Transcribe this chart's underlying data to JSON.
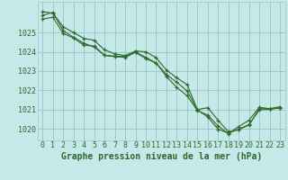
{
  "background_color": "#c5e8e8",
  "grid_color": "#a0c8c8",
  "line_color": "#2d6a2d",
  "marker_color": "#2d6a2d",
  "xlabel": "Graphe pression niveau de la mer (hPa)",
  "xlabel_fontsize": 7,
  "tick_fontsize": 6,
  "ylim": [
    1019.4,
    1026.6
  ],
  "yticks": [
    1020,
    1021,
    1022,
    1023,
    1024,
    1025
  ],
  "xlim": [
    -0.5,
    23.5
  ],
  "xticks": [
    0,
    1,
    2,
    3,
    4,
    5,
    6,
    7,
    8,
    9,
    10,
    11,
    12,
    13,
    14,
    15,
    16,
    17,
    18,
    19,
    20,
    21,
    22,
    23
  ],
  "series": [
    [
      1026.1,
      1026.0,
      1025.3,
      1025.0,
      1024.7,
      1024.6,
      1024.1,
      1023.9,
      1023.8,
      1024.05,
      1024.0,
      1023.7,
      1023.05,
      1022.65,
      1022.3,
      1021.0,
      1021.1,
      1020.45,
      1019.85,
      1019.95,
      1020.2,
      1021.05,
      1021.05,
      1021.15
    ],
    [
      1025.9,
      1026.05,
      1025.1,
      1024.75,
      1024.45,
      1024.25,
      1023.82,
      1023.75,
      1023.72,
      1023.97,
      1023.65,
      1023.42,
      1022.72,
      1022.15,
      1021.72,
      1020.95,
      1020.72,
      1020.15,
      1019.75,
      1020.12,
      1020.45,
      1021.12,
      1021.05,
      1021.08
    ],
    [
      1025.7,
      1025.8,
      1024.95,
      1024.72,
      1024.35,
      1024.3,
      1023.82,
      1023.78,
      1023.75,
      1023.98,
      1023.72,
      1023.42,
      1022.82,
      1022.42,
      1021.98,
      1020.98,
      1020.62,
      1019.98,
      1019.78,
      1019.98,
      1020.22,
      1020.98,
      1021.02,
      1021.08
    ]
  ]
}
